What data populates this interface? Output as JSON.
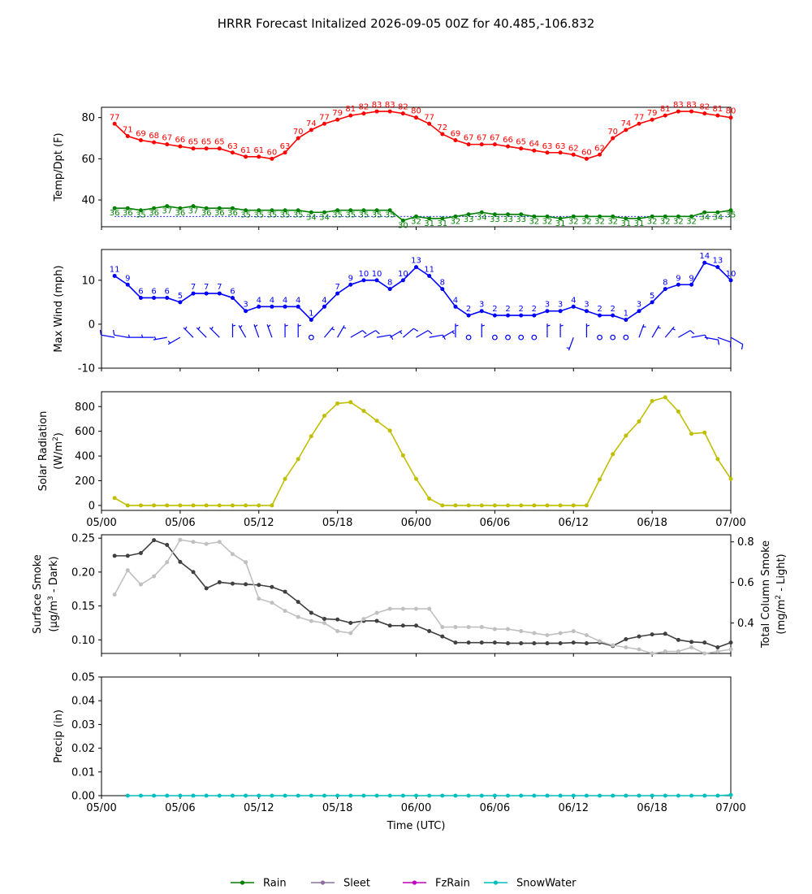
{
  "title": "HRRR Forecast Initalized 2026-09-05 00Z for 40.485,-106.832",
  "colors": {
    "temp": "#ff0000",
    "dewpoint": "#008000",
    "wind": "#0000ff",
    "solar": "#bfbf00",
    "smoke_surface": "#404040",
    "smoke_column": "#c0c0c0",
    "rain": "#008000",
    "sleet": "#8c6fa0",
    "fzrain": "#bf00bf",
    "snow": "#00bfbf"
  },
  "chart_data": [
    {
      "type": "line",
      "name": "temp_panel",
      "ylabel": "Temp/Dpt (F)",
      "xlim": [
        0,
        48
      ],
      "ylim": [
        27,
        85
      ],
      "yticks": [
        40,
        60,
        80
      ],
      "x": [
        1,
        2,
        3,
        4,
        5,
        6,
        7,
        8,
        9,
        10,
        11,
        12,
        13,
        14,
        15,
        16,
        17,
        18,
        19,
        20,
        21,
        22,
        23,
        24,
        25,
        26,
        27,
        28,
        29,
        30,
        31,
        32,
        33,
        34,
        35,
        36,
        37,
        38,
        39,
        40,
        41,
        42,
        43,
        44,
        45,
        46,
        47,
        48
      ],
      "series": [
        {
          "key": "temp",
          "values": [
            77,
            71,
            69,
            68,
            67,
            66,
            65,
            65,
            65,
            63,
            61,
            61,
            60,
            63,
            70,
            74,
            77,
            79,
            81,
            82,
            83,
            83,
            82,
            80,
            77,
            72,
            69,
            67,
            67,
            67,
            66,
            65,
            64,
            63,
            63,
            62,
            60,
            62,
            70,
            74,
            77,
            79,
            81,
            83,
            83,
            82,
            81,
            80
          ]
        },
        {
          "key": "dewpoint",
          "values": [
            36,
            36,
            35,
            36,
            37,
            36,
            37,
            36,
            36,
            36,
            35,
            35,
            35,
            35,
            35,
            34,
            34,
            35,
            35,
            35,
            35,
            35,
            30,
            32,
            31,
            31,
            32,
            33,
            34,
            33,
            33,
            33,
            32,
            32,
            31,
            32,
            32,
            32,
            32,
            31,
            31,
            32,
            32,
            32,
            32,
            34,
            34,
            35
          ]
        }
      ],
      "reference_line": 32
    },
    {
      "type": "line",
      "name": "wind_panel",
      "ylabel": "Max Wind (mph)",
      "xlim": [
        0,
        48
      ],
      "ylim": [
        -10,
        17
      ],
      "yticks": [
        -10,
        0,
        10
      ],
      "x": [
        1,
        2,
        3,
        4,
        5,
        6,
        7,
        8,
        9,
        10,
        11,
        12,
        13,
        14,
        15,
        16,
        17,
        18,
        19,
        20,
        21,
        22,
        23,
        24,
        25,
        26,
        27,
        28,
        29,
        30,
        31,
        32,
        33,
        34,
        35,
        36,
        37,
        38,
        39,
        40,
        41,
        42,
        43,
        44,
        45,
        46,
        47,
        48
      ],
      "series": [
        {
          "key": "wind",
          "values": [
            11,
            9,
            6,
            6,
            6,
            5,
            7,
            7,
            7,
            6,
            3,
            4,
            4,
            4,
            4,
            1,
            4,
            7,
            9,
            10,
            10,
            8,
            10,
            13,
            11,
            8,
            4,
            2,
            3,
            2,
            2,
            2,
            2,
            3,
            3,
            4,
            3,
            2,
            2,
            1,
            3,
            5,
            8,
            9,
            9,
            14,
            13,
            10
          ]
        }
      ],
      "barb_directions_deg": [
        280,
        280,
        270,
        270,
        260,
        240,
        315,
        315,
        315,
        0,
        330,
        340,
        340,
        0,
        0,
        0,
        40,
        30,
        60,
        60,
        80,
        60,
        50,
        60,
        80,
        60,
        0,
        0,
        0,
        0,
        0,
        0,
        0,
        0,
        0,
        200,
        0,
        0,
        0,
        0,
        20,
        30,
        40,
        60,
        80,
        100,
        110,
        120
      ]
    },
    {
      "type": "line",
      "name": "solar_panel",
      "ylabel": "Solar Radiation",
      "ylabel_unit": "(W/m",
      "ylabel_sup": "2",
      "ylabel_close": ")",
      "xlim": [
        0,
        48
      ],
      "ylim": [
        -40,
        920
      ],
      "yticks": [
        0,
        200,
        400,
        600,
        800
      ],
      "x": [
        1,
        2,
        3,
        4,
        5,
        6,
        7,
        8,
        9,
        10,
        11,
        12,
        13,
        14,
        15,
        16,
        17,
        18,
        19,
        20,
        21,
        22,
        23,
        24,
        25,
        26,
        27,
        28,
        29,
        30,
        31,
        32,
        33,
        34,
        35,
        36,
        37,
        38,
        39,
        40,
        41,
        42,
        43,
        44,
        45,
        46,
        47,
        48
      ],
      "series": [
        {
          "key": "solar",
          "values": [
            60,
            0,
            0,
            0,
            0,
            0,
            0,
            0,
            0,
            0,
            0,
            0,
            0,
            215,
            375,
            560,
            725,
            825,
            835,
            765,
            685,
            605,
            405,
            215,
            55,
            0,
            0,
            0,
            0,
            0,
            0,
            0,
            0,
            0,
            0,
            0,
            0,
            210,
            415,
            565,
            680,
            845,
            875,
            760,
            580,
            590,
            375,
            215
          ]
        }
      ]
    },
    {
      "type": "line",
      "name": "smoke_panel",
      "ylabel": "Surface Smoke",
      "ylabel_unit": "(μg/m",
      "ylabel_sup": "3",
      "ylabel_close": " - Dark)",
      "ylabel_right": "Total Column Smoke",
      "ylabel_right_unit": "(mg/m",
      "ylabel_right_sup": "2",
      "ylabel_right_close": " - Light)",
      "xlim": [
        0,
        48
      ],
      "ylim": [
        0.08,
        0.255
      ],
      "yticks": [
        0.1,
        0.15,
        0.2,
        0.25
      ],
      "ylim_right": [
        0.25,
        0.835
      ],
      "yticks_right": [
        0.4,
        0.6,
        0.8
      ],
      "x": [
        1,
        2,
        3,
        4,
        5,
        6,
        7,
        8,
        9,
        10,
        11,
        12,
        13,
        14,
        15,
        16,
        17,
        18,
        19,
        20,
        21,
        22,
        23,
        24,
        25,
        26,
        27,
        28,
        29,
        30,
        31,
        32,
        33,
        34,
        35,
        36,
        37,
        38,
        39,
        40,
        41,
        42,
        43,
        44,
        45,
        46,
        47,
        48
      ],
      "series": [
        {
          "key": "smoke_surface",
          "axis": "left",
          "values": [
            0.224,
            0.224,
            0.228,
            0.247,
            0.24,
            0.215,
            0.2,
            0.176,
            0.185,
            0.183,
            0.182,
            0.181,
            0.178,
            0.171,
            0.156,
            0.14,
            0.131,
            0.13,
            0.125,
            0.128,
            0.128,
            0.121,
            0.121,
            0.121,
            0.113,
            0.105,
            0.096,
            0.096,
            0.096,
            0.096,
            0.095,
            0.095,
            0.095,
            0.095,
            0.095,
            0.096,
            0.095,
            0.096,
            0.091,
            0.101,
            0.105,
            0.108,
            0.109,
            0.1,
            0.097,
            0.096,
            0.089,
            0.096
          ]
        },
        {
          "key": "smoke_column",
          "axis": "right",
          "values": [
            0.54,
            0.66,
            0.59,
            0.63,
            0.7,
            0.81,
            0.8,
            0.79,
            0.8,
            0.74,
            0.7,
            0.52,
            0.5,
            0.46,
            0.43,
            0.41,
            0.4,
            0.36,
            0.35,
            0.42,
            0.45,
            0.47,
            0.47,
            0.47,
            0.47,
            0.38,
            0.38,
            0.38,
            0.38,
            0.37,
            0.37,
            0.36,
            0.35,
            0.34,
            0.35,
            0.36,
            0.34,
            0.31,
            0.29,
            0.28,
            0.27,
            0.25,
            0.26,
            0.26,
            0.28,
            0.25,
            0.26,
            0.27
          ]
        }
      ]
    },
    {
      "type": "line",
      "name": "precip_panel",
      "ylabel": "Precip (in)",
      "xlabel": "Time (UTC)",
      "xlim": [
        0,
        48
      ],
      "ylim": [
        0,
        0.05
      ],
      "yticks": [
        0.0,
        0.01,
        0.02,
        0.03,
        0.04,
        0.05
      ],
      "x": [
        2,
        3,
        4,
        5,
        6,
        7,
        8,
        9,
        10,
        11,
        12,
        13,
        14,
        15,
        16,
        17,
        18,
        19,
        20,
        21,
        22,
        23,
        24,
        25,
        26,
        27,
        28,
        29,
        30,
        31,
        32,
        33,
        34,
        35,
        36,
        37,
        38,
        39,
        40,
        41,
        42,
        43,
        44,
        45,
        46,
        47,
        48
      ],
      "series": [
        {
          "key": "snow",
          "name": "SnowWater",
          "values": [
            0,
            0,
            0,
            0,
            0,
            0,
            0,
            0,
            0,
            0,
            0,
            0,
            0,
            0,
            0,
            0,
            0,
            0,
            0,
            0,
            0,
            0,
            0,
            0,
            0,
            0,
            0,
            0,
            0,
            0,
            0,
            0,
            0,
            0,
            0,
            0,
            0,
            0,
            0,
            0,
            0,
            0,
            0,
            0,
            0,
            0,
            0.0003
          ]
        }
      ]
    }
  ],
  "xticks": {
    "values": [
      0,
      6,
      12,
      18,
      24,
      30,
      36,
      42,
      48
    ],
    "labels": [
      "05/00",
      "05/06",
      "05/12",
      "05/18",
      "06/00",
      "06/06",
      "06/12",
      "06/18",
      "07/00"
    ]
  },
  "legend": [
    {
      "label": "Rain",
      "key": "rain"
    },
    {
      "label": "Sleet",
      "key": "sleet"
    },
    {
      "label": "FzRain",
      "key": "fzrain"
    },
    {
      "label": "SnowWater",
      "key": "snow"
    }
  ]
}
